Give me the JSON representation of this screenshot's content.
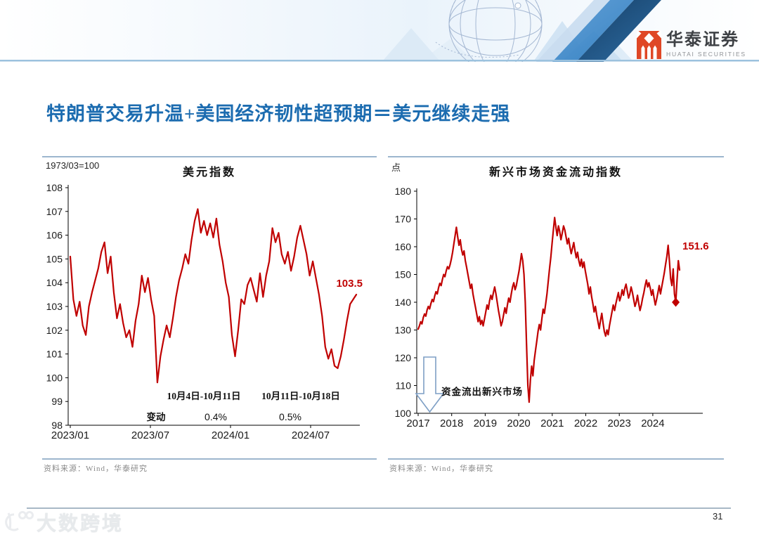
{
  "slide": {
    "title": "特朗普交易升温+美国经济韧性超预期＝美元继续走强",
    "page_number": "31"
  },
  "brand": {
    "logo_cn": "华泰证券",
    "logo_en": "HUATAI SECURITIES"
  },
  "watermark": {
    "text": "大数跨境",
    "icon": "100-swirl-icon"
  },
  "colors": {
    "line_red": "#c00000",
    "title_blue": "#1c6cb0",
    "border_blue": "#9db6ce",
    "brand_red": "#df4726",
    "band_navy": "#1f4e79"
  },
  "chart_data": [
    {
      "type": "line",
      "title": "美元指数",
      "unit_label": "1973/03=100",
      "xlabel": "",
      "ylabel": "",
      "ylim": [
        98,
        108
      ],
      "y_step": 1,
      "grid": false,
      "legend": "none",
      "x_ticks": [
        "2023/01",
        "2023/07",
        "2024/01",
        "2024/07"
      ],
      "series": [
        {
          "name": "美元指数",
          "color": "#c00000",
          "values": [
            105.1,
            103.3,
            102.6,
            103.2,
            102.2,
            101.8,
            103.0,
            103.6,
            104.1,
            104.6,
            105.3,
            105.7,
            104.4,
            105.1,
            103.6,
            102.5,
            103.1,
            102.3,
            101.7,
            102.0,
            101.3,
            102.4,
            103.1,
            104.3,
            103.6,
            104.2,
            103.3,
            102.6,
            99.8,
            100.9,
            101.6,
            102.2,
            101.7,
            102.5,
            103.4,
            104.1,
            104.6,
            105.2,
            104.8,
            105.8,
            106.6,
            107.1,
            106.1,
            106.6,
            106.0,
            106.5,
            105.9,
            106.7,
            105.6,
            104.9,
            104.0,
            103.4,
            101.8,
            100.9,
            102.0,
            103.3,
            103.1,
            103.9,
            104.2,
            103.7,
            103.2,
            104.4,
            103.4,
            104.3,
            104.9,
            106.3,
            105.7,
            106.1,
            105.2,
            104.8,
            105.3,
            104.5,
            105.1,
            105.9,
            106.4,
            105.8,
            105.2,
            104.3,
            104.9,
            104.2,
            103.5,
            102.6,
            101.3,
            100.8,
            101.2,
            100.5,
            100.4,
            100.9,
            101.6,
            102.4,
            103.1,
            103.3,
            103.5
          ]
        }
      ],
      "end_label": "103.5",
      "table": {
        "header": [
          "10月4日-10月11日",
          "10月11日-10月18日"
        ],
        "row_label": "变动",
        "row_values": [
          "0.4%",
          "0.5%"
        ]
      },
      "source": "资料来源：Wind，华泰研究"
    },
    {
      "type": "line",
      "title": "新兴市场资金流动指数",
      "unit_label": "点",
      "xlabel": "",
      "ylabel": "",
      "ylim": [
        100,
        180
      ],
      "y_step": 10,
      "grid": false,
      "legend": "none",
      "x_ticks": [
        "2017",
        "2018",
        "2019",
        "2020",
        "2021",
        "2022",
        "2023",
        "2024"
      ],
      "series": [
        {
          "name": "新兴市场资金流动指数",
          "color": "#c00000",
          "values": [
            130.3,
            131.5,
            133.0,
            132.2,
            134.5,
            135.8,
            135.0,
            137.2,
            138.5,
            137.6,
            139.5,
            141.0,
            140.2,
            142.3,
            143.8,
            143.0,
            145.2,
            146.8,
            146.0,
            148.2,
            150.0,
            149.2,
            151.3,
            152.8,
            152.0,
            153.5,
            155.5,
            158.0,
            161.0,
            164.0,
            167.0,
            163.5,
            160.5,
            162.5,
            159.0,
            157.0,
            158.5,
            155.0,
            152.5,
            150.0,
            147.5,
            145.0,
            146.5,
            143.0,
            140.5,
            138.0,
            135.5,
            133.0,
            134.8,
            132.0,
            133.5,
            131.5,
            134.0,
            136.5,
            139.0,
            137.5,
            140.5,
            142.5,
            141.0,
            143.5,
            145.5,
            143.0,
            140.0,
            137.0,
            134.5,
            131.5,
            133.0,
            135.5,
            138.0,
            136.0,
            139.0,
            141.5,
            140.0,
            143.0,
            145.5,
            147.0,
            144.5,
            146.0,
            148.5,
            151.0,
            154.0,
            157.5,
            155.0,
            150.0,
            140.0,
            125.0,
            110.0,
            104.0,
            112.0,
            117.0,
            113.5,
            119.0,
            122.5,
            126.0,
            129.5,
            132.0,
            130.0,
            134.0,
            137.5,
            136.0,
            139.5,
            143.0,
            147.5,
            152.0,
            156.0,
            161.0,
            166.0,
            170.5,
            167.0,
            164.0,
            167.5,
            165.5,
            162.5,
            165.0,
            167.5,
            166.0,
            163.5,
            161.0,
            163.0,
            160.0,
            157.5,
            159.5,
            161.5,
            158.5,
            156.0,
            158.0,
            155.0,
            153.0,
            155.5,
            152.5,
            154.5,
            151.5,
            149.0,
            146.5,
            143.0,
            145.5,
            142.0,
            139.5,
            136.5,
            138.5,
            135.5,
            133.0,
            130.5,
            133.5,
            136.0,
            132.5,
            129.5,
            127.8,
            130.0,
            128.3,
            131.5,
            134.0,
            136.5,
            139.0,
            137.0,
            139.5,
            141.5,
            143.5,
            140.5,
            142.0,
            144.5,
            142.5,
            145.0,
            146.5,
            144.0,
            141.5,
            143.0,
            145.5,
            143.5,
            141.0,
            138.5,
            140.0,
            142.5,
            139.5,
            137.0,
            139.0,
            141.5,
            143.5,
            146.0,
            148.0,
            145.5,
            147.0,
            145.0,
            142.5,
            144.5,
            141.5,
            139.0,
            141.0,
            143.5,
            146.0,
            143.0,
            145.5,
            148.0,
            150.5,
            153.5,
            156.5,
            160.5,
            155.0,
            148.5,
            146.0,
            152.0,
            143.0,
            140.0,
            148.0,
            155.0,
            151.6
          ]
        }
      ],
      "end_label": "151.6",
      "marker_index": 202,
      "annotation": {
        "text": "资金流出新兴市场",
        "arrow": "down-hollow-arrow"
      },
      "source": "资料来源：Wind，华泰研究"
    }
  ]
}
